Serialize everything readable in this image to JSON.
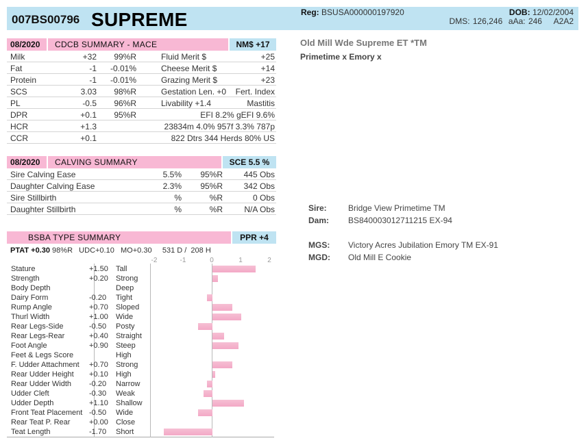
{
  "header": {
    "code": "007BS00796",
    "name": "SUPREME",
    "reg_label": "Reg:",
    "reg_value": "BSUSA000000197920",
    "dob_label": "DOB:",
    "dob_value": "12/02/2004",
    "dms_line": "DMS: 126,246  aAa: 246    A2A2"
  },
  "animal": {
    "full_name": "Old Mill Wde Supreme ET *TM",
    "sires_line": "Primetime x Emory x"
  },
  "cdcb": {
    "date": "08/2020",
    "title": "CDCB SUMMARY - MACE",
    "index": "NM$ +17",
    "rows": [
      {
        "c1": "Milk",
        "c2": "+32",
        "c3": "99%R",
        "c4": "Fluid Merit $",
        "c5": "+25"
      },
      {
        "c1": "Fat",
        "c2": "-1",
        "c3": "-0.01%",
        "c4": "Cheese Merit $",
        "c5": "+14"
      },
      {
        "c1": "Protein",
        "c2": "-1",
        "c3": "-0.01%",
        "c4": "Grazing Merit $",
        "c5": "+23"
      },
      {
        "c1": "SCS",
        "c2": "3.03",
        "c3": "98%R",
        "c4": "Gestation Len. +0",
        "c5": "Fert. Index"
      },
      {
        "c1": "PL",
        "c2": "-0.5",
        "c3": "96%R",
        "c4": "Livability  +1.4",
        "c5": "Mastitis"
      },
      {
        "c1": "DPR",
        "c2": "+0.1",
        "c3": "95%R",
        "c4": "EFI  8.2%  gEFI  9.6%",
        "c5": ""
      },
      {
        "c1": "HCR",
        "c2": "+1.3",
        "c3": "",
        "c4": "23834m  4.0%  957f  3.3%  787p",
        "c5": ""
      },
      {
        "c1": "CCR",
        "c2": "+0.1",
        "c3": "",
        "c4": "822 Dtrs  344 Herds  80% US",
        "c5": ""
      }
    ]
  },
  "calving": {
    "date": "08/2020",
    "title": "CALVING SUMMARY",
    "index": "SCE 5.5 %",
    "rows": [
      {
        "label": "Sire Calving Ease",
        "pct": "5.5%",
        "rel": "95%R",
        "obs": "445 Obs"
      },
      {
        "label": "Daughter Calving Ease",
        "pct": "2.3%",
        "rel": "95%R",
        "obs": "342 Obs"
      },
      {
        "label": "Sire Stillbirth",
        "pct": "%",
        "rel": "%R",
        "obs": "0 Obs"
      },
      {
        "label": "Daughter Stillbirth",
        "pct": "%",
        "rel": "%R",
        "obs": "N/A Obs"
      }
    ]
  },
  "type": {
    "title": "BSBA TYPE SUMMARY",
    "index": "PPR +4",
    "ptat_label": "PTAT +0.30",
    "ptat_rest": "98%R   UDC+0.10   MO+0.30     531 D /  208 H",
    "ticks": [
      "-2",
      "-1",
      "0",
      "1",
      "2"
    ],
    "traits": [
      {
        "name": "Stature",
        "value": "+1.50",
        "desc": "Tall",
        "v": 1.5
      },
      {
        "name": "Strength",
        "value": "+0.20",
        "desc": "Strong",
        "v": 0.2
      },
      {
        "name": "Body Depth",
        "value": "",
        "desc": "Deep",
        "v": 0
      },
      {
        "name": "Dairy Form",
        "value": "-0.20",
        "desc": "Tight",
        "v": -0.2
      },
      {
        "name": "Rump Angle",
        "value": "+0.70",
        "desc": "Sloped",
        "v": 0.7
      },
      {
        "name": "Thurl Width",
        "value": "+1.00",
        "desc": "Wide",
        "v": 1.0
      },
      {
        "name": "Rear Legs-Side",
        "value": "-0.50",
        "desc": "Posty",
        "v": -0.5
      },
      {
        "name": "Rear Legs-Rear",
        "value": "+0.40",
        "desc": "Straight",
        "v": 0.4
      },
      {
        "name": "Foot Angle",
        "value": "+0.90",
        "desc": "Steep",
        "v": 0.9
      },
      {
        "name": "Feet & Legs Score",
        "value": "",
        "desc": "High",
        "v": 0
      },
      {
        "name": "F. Udder Attachment",
        "value": "+0.70",
        "desc": "Strong",
        "v": 0.7
      },
      {
        "name": "Rear Udder Height",
        "value": "+0.10",
        "desc": "High",
        "v": 0.1
      },
      {
        "name": "Rear Udder Width",
        "value": "-0.20",
        "desc": "Narrow",
        "v": -0.2
      },
      {
        "name": "Udder Cleft",
        "value": "-0.30",
        "desc": "Weak",
        "v": -0.3
      },
      {
        "name": "Udder Depth",
        "value": "+1.10",
        "desc": "Shallow",
        "v": 1.1
      },
      {
        "name": "Front Teat Placement",
        "value": "-0.50",
        "desc": "Wide",
        "v": -0.5
      },
      {
        "name": "Rear Teat P. Rear",
        "value": "+0.00",
        "desc": "Close",
        "v": 0.0
      },
      {
        "name": "Teat Length",
        "value": "-1.70",
        "desc": "Short",
        "v": -1.7
      }
    ]
  },
  "pedigree": {
    "sire_label": "Sire:",
    "sire": "Bridge View Primetime TM",
    "dam_label": "Dam:",
    "dam": "BS840003012711215 EX-94",
    "mgs_label": "MGS:",
    "mgs": "Victory Acres Jubilation Emory TM EX-91",
    "mgd_label": "MGD:",
    "mgd": "Old Mill E Cookie"
  }
}
